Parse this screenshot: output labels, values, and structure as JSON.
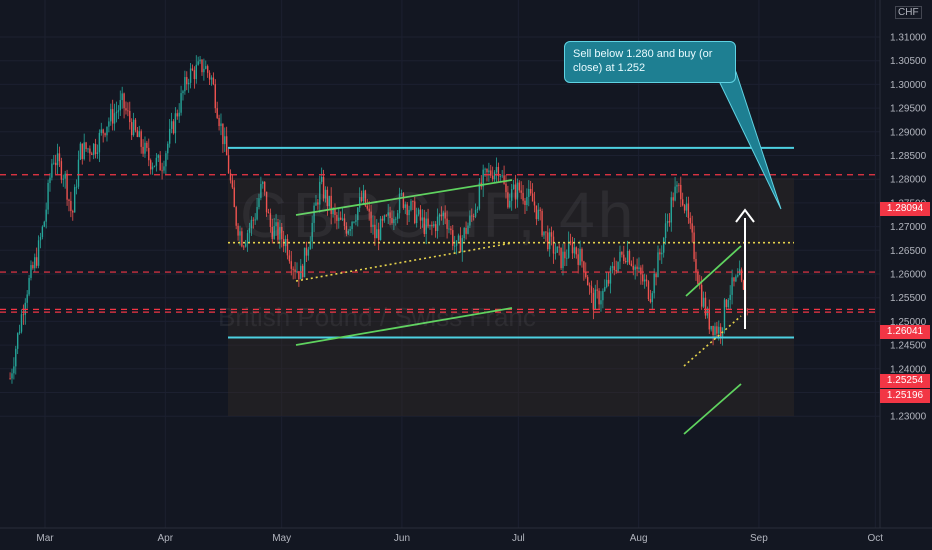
{
  "chart_data": {
    "type": "candlestick",
    "symbol": "GBPCHF",
    "timeframe": "4h",
    "instrument_name": "British Pound / Swiss Franc",
    "currency": "CHF",
    "x_ticks": [
      "Mar",
      "Apr",
      "May",
      "Jun",
      "Jul",
      "Aug",
      "Sep",
      "Oct"
    ],
    "y_ticks": [
      "1.31000",
      "1.30500",
      "1.30000",
      "1.29500",
      "1.29000",
      "1.28500",
      "1.28000",
      "1.27500",
      "1.27000",
      "1.26500",
      "1.26000",
      "1.25500",
      "1.25000",
      "1.24500",
      "1.24000",
      "1.23500",
      "1.23000"
    ],
    "ylim": [
      1.227,
      1.315
    ],
    "annotation": "Sell below 1.280 and buy (or close) at 1.252",
    "price_tags": [
      {
        "label": "1.28094",
        "value": 1.28094
      },
      {
        "label": "1.26041",
        "value": 1.26041
      },
      {
        "label": "1.25254",
        "value": 1.25254
      },
      {
        "label": "1.25196",
        "value": 1.25196
      }
    ],
    "channel_upper": 1.2866,
    "channel_lower": 1.2466,
    "channel_mid": 1.2666,
    "series": [
      {
        "name": "GBPCHF 4h",
        "points": [
          [
            "2023-02-20",
            1.238
          ],
          [
            "2023-02-24",
            1.256
          ],
          [
            "2023-02-27",
            1.264
          ],
          [
            "2023-03-01",
            1.272
          ],
          [
            "2023-03-03",
            1.285
          ],
          [
            "2023-03-06",
            1.281
          ],
          [
            "2023-03-08",
            1.272
          ],
          [
            "2023-03-10",
            1.286
          ],
          [
            "2023-03-14",
            1.287
          ],
          [
            "2023-03-17",
            1.292
          ],
          [
            "2023-03-21",
            1.296
          ],
          [
            "2023-03-24",
            1.29
          ],
          [
            "2023-03-28",
            1.284
          ],
          [
            "2023-03-31",
            1.283
          ],
          [
            "2023-04-04",
            1.294
          ],
          [
            "2023-04-07",
            1.302
          ],
          [
            "2023-04-11",
            1.304
          ],
          [
            "2023-04-13",
            1.301
          ],
          [
            "2023-04-17",
            1.284
          ],
          [
            "2023-04-19",
            1.272
          ],
          [
            "2023-04-21",
            1.267
          ],
          [
            "2023-04-24",
            1.272
          ],
          [
            "2023-04-26",
            1.279
          ],
          [
            "2023-04-28",
            1.27
          ],
          [
            "2023-05-02",
            1.267
          ],
          [
            "2023-05-04",
            1.262
          ],
          [
            "2023-05-06",
            1.26
          ],
          [
            "2023-05-09",
            1.271
          ],
          [
            "2023-05-11",
            1.279
          ],
          [
            "2023-05-15",
            1.271
          ],
          [
            "2023-05-18",
            1.27
          ],
          [
            "2023-05-22",
            1.276
          ],
          [
            "2023-05-25",
            1.268
          ],
          [
            "2023-05-29",
            1.272
          ],
          [
            "2023-06-01",
            1.276
          ],
          [
            "2023-06-05",
            1.272
          ],
          [
            "2023-06-08",
            1.269
          ],
          [
            "2023-06-12",
            1.273
          ],
          [
            "2023-06-15",
            1.265
          ],
          [
            "2023-06-19",
            1.272
          ],
          [
            "2023-06-22",
            1.28
          ],
          [
            "2023-06-26",
            1.283
          ],
          [
            "2023-06-28",
            1.276
          ],
          [
            "2023-07-01",
            1.278
          ],
          [
            "2023-07-05",
            1.275
          ],
          [
            "2023-07-08",
            1.268
          ],
          [
            "2023-07-12",
            1.263
          ],
          [
            "2023-07-15",
            1.266
          ],
          [
            "2023-07-18",
            1.262
          ],
          [
            "2023-07-20",
            1.254
          ],
          [
            "2023-07-23",
            1.256
          ],
          [
            "2023-07-26",
            1.262
          ],
          [
            "2023-07-29",
            1.265
          ],
          [
            "2023-08-01",
            1.26
          ],
          [
            "2023-08-04",
            1.256
          ],
          [
            "2023-08-07",
            1.266
          ],
          [
            "2023-08-10",
            1.277
          ],
          [
            "2023-08-12",
            1.278
          ],
          [
            "2023-08-15",
            1.266
          ],
          [
            "2023-08-17",
            1.256
          ],
          [
            "2023-08-19",
            1.25
          ],
          [
            "2023-08-22",
            1.248
          ],
          [
            "2023-08-24",
            1.256
          ],
          [
            "2023-08-27",
            1.259
          ],
          [
            "2023-08-29",
            1.252
          ]
        ]
      }
    ]
  }
}
